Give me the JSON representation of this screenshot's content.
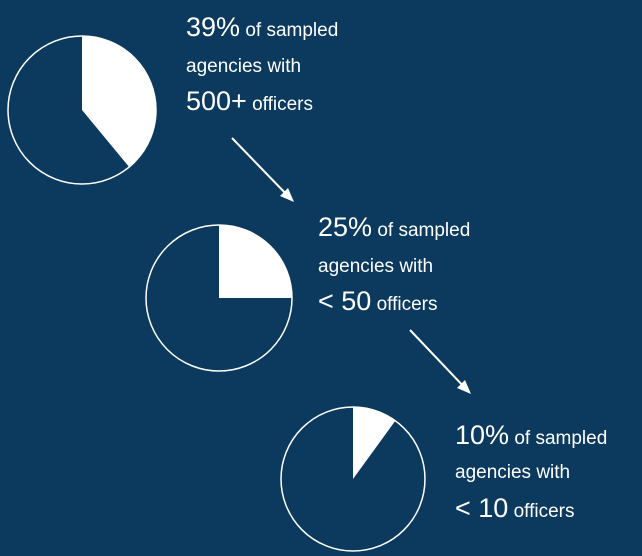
{
  "chart_data": [
    {
      "type": "pie",
      "values": [
        39
      ],
      "value_labels": [
        "39%"
      ],
      "color": "#ffffff",
      "caption_lines": [
        "of sampled",
        "agencies with"
      ],
      "group": "500+",
      "unit": "officers"
    },
    {
      "type": "pie",
      "values": [
        25
      ],
      "value_labels": [
        "25%"
      ],
      "color": "#ffffff",
      "caption_lines": [
        "of sampled",
        "agencies with"
      ],
      "group": "< 50",
      "unit": "officers"
    },
    {
      "type": "pie",
      "values": [
        10
      ],
      "value_labels": [
        "10%"
      ],
      "color": "#ffffff",
      "caption_lines": [
        "of sampled",
        "agencies with"
      ],
      "group": "< 10",
      "unit": "officers"
    }
  ]
}
